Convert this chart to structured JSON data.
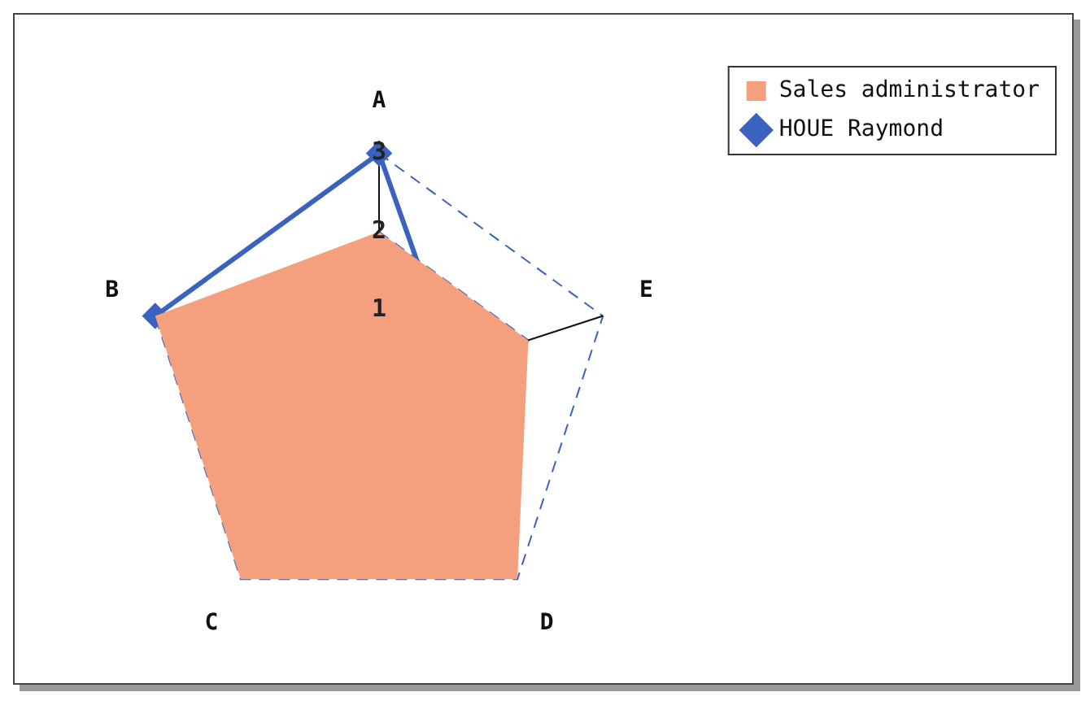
{
  "chart_data": {
    "type": "radar",
    "categories": [
      "A",
      "E",
      "D",
      "C",
      "B"
    ],
    "series": [
      {
        "name": "Sales administrator",
        "color": "#f4a07f",
        "values": [
          2,
          2,
          3,
          3,
          3
        ]
      },
      {
        "name": "HOUE Raymond",
        "color": "#3b62bf",
        "values": [
          3,
          1,
          2,
          2,
          3
        ],
        "marker": "diamond"
      }
    ],
    "ylim": [
      0,
      3
    ],
    "yticks": [
      1,
      2,
      3
    ],
    "grid": true,
    "legend": "top right"
  }
}
